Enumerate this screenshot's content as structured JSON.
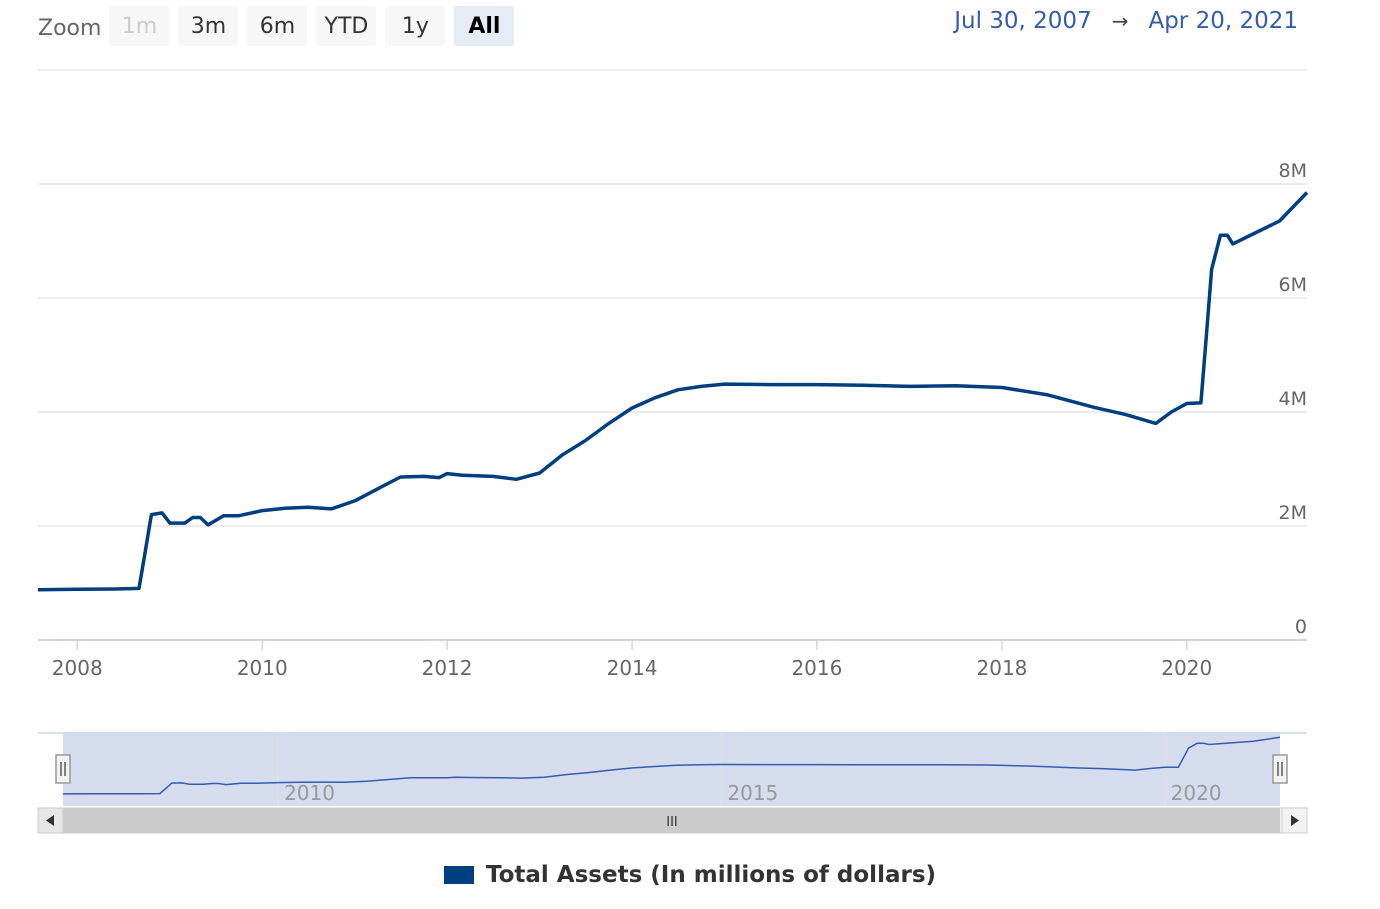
{
  "zoom": {
    "label": "Zoom",
    "buttons": [
      {
        "label": "1m",
        "state": "disabled"
      },
      {
        "label": "3m",
        "state": "normal"
      },
      {
        "label": "6m",
        "state": "normal"
      },
      {
        "label": "YTD",
        "state": "normal"
      },
      {
        "label": "1y",
        "state": "normal"
      },
      {
        "label": "All",
        "state": "active"
      }
    ]
  },
  "range": {
    "from": "Jul 30, 2007",
    "arrow": "→",
    "to": "Apr 20, 2021"
  },
  "legend": {
    "label": "Total Assets (In millions of dollars)",
    "color": "#003f7f"
  },
  "colors": {
    "line": "#003f7f",
    "navigator_fill": "#ccd6eb",
    "navigator_line": "#335cad",
    "grid": "#e6e6e6",
    "axis_label": "#666666"
  },
  "chart_data": {
    "type": "line",
    "title": "",
    "xlabel": "",
    "ylabel": "",
    "xlim": [
      "2007-07-30",
      "2021-04-20"
    ],
    "ylim": [
      0,
      10000000
    ],
    "x_ticks": [
      "2008",
      "2010",
      "2012",
      "2014",
      "2016",
      "2018",
      "2020"
    ],
    "y_ticks": [
      {
        "value": 0,
        "label": "0"
      },
      {
        "value": 2000000,
        "label": "2M"
      },
      {
        "value": 4000000,
        "label": "4M"
      },
      {
        "value": 6000000,
        "label": "6M"
      },
      {
        "value": 8000000,
        "label": "8M"
      }
    ],
    "grid": true,
    "legend_position": "bottom-center",
    "series": [
      {
        "name": "Total Assets (In millions of dollars)",
        "x": [
          "2007-07-30",
          "2008-01-01",
          "2008-06-01",
          "2008-09-01",
          "2008-09-20",
          "2008-10-20",
          "2008-12-01",
          "2009-01-01",
          "2009-03-01",
          "2009-04-01",
          "2009-05-01",
          "2009-06-01",
          "2009-08-01",
          "2009-10-01",
          "2010-01-01",
          "2010-04-01",
          "2010-07-01",
          "2010-10-01",
          "2011-01-01",
          "2011-04-01",
          "2011-07-01",
          "2011-10-01",
          "2011-12-01",
          "2012-01-01",
          "2012-03-01",
          "2012-07-01",
          "2012-10-01",
          "2013-01-01",
          "2013-04-01",
          "2013-07-01",
          "2013-10-01",
          "2014-01-01",
          "2014-04-01",
          "2014-07-01",
          "2014-10-01",
          "2015-01-01",
          "2015-07-01",
          "2016-01-01",
          "2016-07-01",
          "2017-01-01",
          "2017-07-01",
          "2018-01-01",
          "2018-07-01",
          "2019-01-01",
          "2019-05-01",
          "2019-09-01",
          "2019-11-01",
          "2020-01-01",
          "2020-02-26",
          "2020-03-18",
          "2020-04-08",
          "2020-05-13",
          "2020-06-10",
          "2020-07-01",
          "2020-10-01",
          "2021-01-01",
          "2021-04-20"
        ],
        "values": [
          880000,
          890000,
          895000,
          905000,
          1400000,
          2200000,
          2230000,
          2050000,
          2050000,
          2150000,
          2150000,
          2020000,
          2180000,
          2180000,
          2270000,
          2310000,
          2330000,
          2300000,
          2440000,
          2650000,
          2860000,
          2870000,
          2850000,
          2920000,
          2890000,
          2870000,
          2820000,
          2930000,
          3250000,
          3500000,
          3800000,
          4070000,
          4250000,
          4390000,
          4450000,
          4490000,
          4480000,
          4480000,
          4470000,
          4450000,
          4460000,
          4430000,
          4300000,
          4080000,
          3960000,
          3800000,
          4000000,
          4150000,
          4160000,
          5300000,
          6500000,
          7100000,
          7100000,
          6950000,
          7150000,
          7350000,
          7850000
        ]
      }
    ],
    "navigator": {
      "x_ticks": [
        "2010",
        "2015",
        "2020"
      ],
      "selected_range": [
        "2007-07-30",
        "2021-04-20"
      ],
      "scroll_thumb_glyph": "III"
    }
  }
}
